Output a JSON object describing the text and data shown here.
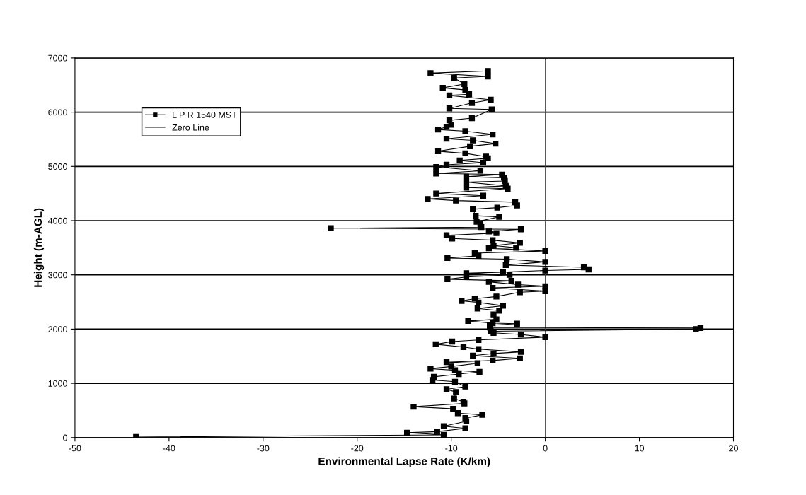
{
  "chart_data": {
    "type": "line",
    "xlabel": "Environmental Lapse Rate (K/km)",
    "ylabel": "Height (m-AGL)",
    "xlim": [
      -50,
      20
    ],
    "xticks": [
      -50,
      -40,
      -30,
      -20,
      -10,
      0,
      10,
      20
    ],
    "ylim": [
      0,
      7000
    ],
    "yticks": [
      0,
      1000,
      2000,
      3000,
      4000,
      5000,
      6000,
      7000
    ],
    "grid": "y",
    "legend": "top left",
    "series": [
      {
        "name": "L P R 1540 MST",
        "color": "#000000",
        "marker": "square",
        "line_style": "solid",
        "x": [
          -43.5,
          -10.8,
          -14.7,
          -11.5,
          -8.5,
          -10.8,
          -8.4,
          -8.5,
          -6.7,
          -9.3,
          -9.8,
          -14.0,
          -8.6,
          -8.7,
          -9.7,
          -9.5,
          -10.5,
          -8.5,
          -9.6,
          -12.0,
          -11.85,
          -9.2,
          -7.0,
          -9.6,
          -12.2,
          -10.0,
          -7.2,
          -10.5,
          -5.6,
          -2.7,
          -7.7,
          -5.5,
          -2.6,
          -7.1,
          -8.7,
          -11.65,
          -9.9,
          -7.1,
          0,
          -2.6,
          -5.5,
          -5.8,
          16.0,
          16.5,
          -5.9,
          -5.9,
          -3.0,
          -5.6,
          -8.2,
          -5.2,
          -5.5,
          -4.9,
          -7.2,
          -4.5,
          -7.1,
          -8.9,
          -7.5,
          -5.2,
          -2.7,
          0,
          -5.6,
          0,
          -2.9,
          -6.0,
          -3.6,
          -10.4,
          -8.4,
          -3.8,
          -8.4,
          -4.5,
          0,
          4.6,
          4.1,
          -4.2,
          0,
          -4.1,
          -10.4,
          -7.1,
          -7.5,
          0,
          -6.0,
          -3.1,
          -5.5,
          -2.7,
          -5.6,
          -9.9,
          -10.5,
          -5.2,
          -6.0,
          -2.6,
          -22.8,
          -6.8,
          -6.9,
          -7.3,
          -4.9,
          -7.4,
          -7.7,
          -5.1,
          -3.0,
          -3.2,
          -9.5,
          -12.5,
          -6.6,
          -11.6,
          -4.0,
          -8.4,
          -4.2,
          -8.4,
          -4.3,
          -4.4,
          -8.4,
          -4.6,
          -11.6,
          -6.9,
          -11.6,
          -10.5,
          -6.6,
          -9.1,
          -6.1,
          -6.3,
          -8.5,
          -11.4,
          -8.0,
          -5.3,
          -7.7,
          -10.5,
          -5.6,
          -8.5,
          -11.4,
          -10.5,
          -10.0,
          -10.2,
          -7.8,
          -5.7,
          -10.2,
          -7.8,
          -5.8,
          -10.2,
          -8.1,
          -8.5,
          -10.9,
          -8.6,
          -9.7,
          -6.1,
          -12.2,
          -6.1
        ],
        "values": [
          10,
          50,
          90,
          110,
          170,
          210,
          300,
          360,
          420,
          450,
          530,
          570,
          630,
          660,
          720,
          840,
          890,
          940,
          1030,
          1060,
          1120,
          1170,
          1210,
          1240,
          1270,
          1310,
          1370,
          1390,
          1420,
          1460,
          1510,
          1550,
          1580,
          1630,
          1670,
          1720,
          1770,
          1800,
          1850,
          1900,
          1930,
          1960,
          2000,
          2020,
          2030,
          2070,
          2100,
          2110,
          2150,
          2180,
          2270,
          2340,
          2380,
          2430,
          2490,
          2520,
          2560,
          2600,
          2680,
          2700,
          2760,
          2790,
          2820,
          2870,
          2890,
          2920,
          2960,
          3000,
          3030,
          3050,
          3080,
          3100,
          3140,
          3180,
          3240,
          3290,
          3310,
          3350,
          3400,
          3440,
          3490,
          3500,
          3540,
          3590,
          3640,
          3670,
          3730,
          3770,
          3800,
          3840,
          3860,
          3880,
          3940,
          3980,
          4070,
          4090,
          4210,
          4240,
          4280,
          4340,
          4370,
          4400,
          4460,
          4500,
          4590,
          4610,
          4640,
          4710,
          4730,
          4790,
          4810,
          4850,
          4870,
          4920,
          4990,
          5030,
          5070,
          5110,
          5150,
          5180,
          5240,
          5280,
          5370,
          5420,
          5480,
          5510,
          5590,
          5650,
          5680,
          5730,
          5770,
          5850,
          5890,
          6050,
          6070,
          6170,
          6230,
          6310,
          6330,
          6410,
          6450,
          6520,
          6630,
          6660,
          6720,
          6760
        ]
      },
      {
        "name": "Zero Line",
        "color": "#404040",
        "marker": "none",
        "line_style": "solid",
        "x": [
          0,
          0
        ],
        "values": [
          0,
          7000
        ]
      }
    ]
  }
}
